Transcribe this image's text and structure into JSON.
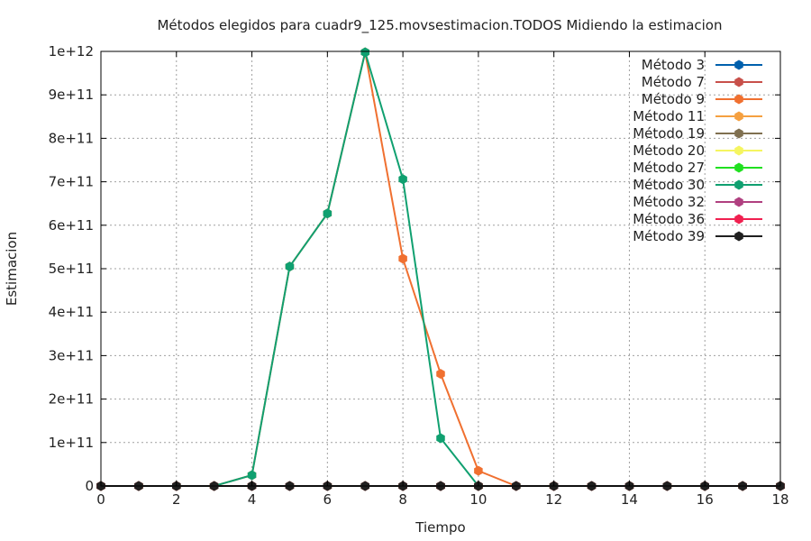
{
  "chart_data": {
    "type": "line",
    "title": "Métodos elegidos para cuadr9_125.movsestimacion.TODOS Midiendo la estimacion",
    "xlabel": "Tiempo",
    "ylabel": "Estimacion",
    "xlim": [
      0,
      18
    ],
    "ylim": [
      0,
      1000000000000
    ],
    "x_ticks": [
      0,
      2,
      4,
      6,
      8,
      10,
      12,
      14,
      16,
      18
    ],
    "x_tick_labels": [
      "0",
      "2",
      "4",
      "6",
      "8",
      "10",
      "12",
      "14",
      "16",
      "18"
    ],
    "y_ticks": [
      0,
      100000000000,
      200000000000,
      300000000000,
      400000000000,
      500000000000,
      600000000000,
      700000000000,
      800000000000,
      900000000000,
      1000000000000
    ],
    "y_tick_labels": [
      "0",
      "1e+11",
      "2e+11",
      "3e+11",
      "4e+11",
      "5e+11",
      "6e+11",
      "7e+11",
      "8e+11",
      "9e+11",
      "1e+12"
    ],
    "grid": true,
    "legend_position": "top-right",
    "x": [
      0,
      1,
      2,
      3,
      4,
      5,
      6,
      7,
      8,
      9,
      10,
      11,
      12,
      13,
      14,
      15,
      16,
      17,
      18
    ],
    "series": [
      {
        "name": "Método 3",
        "color": "#0060ad",
        "values": [
          0,
          0,
          0,
          0,
          0,
          0,
          0,
          0,
          0,
          0,
          0,
          0,
          0,
          0,
          0,
          0,
          0,
          0,
          0
        ]
      },
      {
        "name": "Método 7",
        "color": "#c8504a",
        "values": [
          0,
          0,
          0,
          0,
          0,
          0,
          0,
          0,
          0,
          0,
          0,
          0,
          0,
          0,
          0,
          0,
          0,
          0,
          0
        ]
      },
      {
        "name": "Método 9",
        "color": "#f07030",
        "values": [
          0,
          0,
          0,
          0,
          25000000000,
          505000000000,
          627000000000,
          998000000000,
          523000000000,
          258000000000,
          35000000000,
          0,
          0,
          0,
          0,
          0,
          0,
          0,
          0
        ]
      },
      {
        "name": "Método 11",
        "color": "#f5a040",
        "values": [
          0,
          0,
          0,
          0,
          0,
          0,
          0,
          0,
          0,
          0,
          0,
          0,
          0,
          0,
          0,
          0,
          0,
          0,
          0
        ]
      },
      {
        "name": "Método 19",
        "color": "#807050",
        "values": [
          0,
          0,
          0,
          0,
          0,
          0,
          0,
          0,
          0,
          0,
          0,
          0,
          0,
          0,
          0,
          0,
          0,
          0,
          0
        ]
      },
      {
        "name": "Método 20",
        "color": "#f5f560",
        "values": [
          0,
          0,
          0,
          0,
          0,
          0,
          0,
          0,
          0,
          0,
          0,
          0,
          0,
          0,
          0,
          0,
          0,
          0,
          0
        ]
      },
      {
        "name": "Método 27",
        "color": "#20e020",
        "values": [
          0,
          0,
          0,
          0,
          0,
          0,
          0,
          0,
          0,
          0,
          0,
          0,
          0,
          0,
          0,
          0,
          0,
          0,
          0
        ]
      },
      {
        "name": "Método 30",
        "color": "#10a070",
        "values": [
          0,
          0,
          0,
          0,
          25000000000,
          505000000000,
          627000000000,
          998000000000,
          706000000000,
          110000000000,
          0,
          0,
          0,
          0,
          0,
          0,
          0,
          0,
          0
        ]
      },
      {
        "name": "Método 32",
        "color": "#b04080",
        "values": [
          0,
          0,
          0,
          0,
          0,
          0,
          0,
          0,
          0,
          0,
          0,
          0,
          0,
          0,
          0,
          0,
          0,
          0,
          0
        ]
      },
      {
        "name": "Método 36",
        "color": "#f02050",
        "values": [
          0,
          0,
          0,
          0,
          0,
          0,
          0,
          0,
          0,
          0,
          0,
          0,
          0,
          0,
          0,
          0,
          0,
          0,
          0
        ]
      },
      {
        "name": "Método 39",
        "color": "#202020",
        "values": [
          0,
          0,
          0,
          0,
          0,
          0,
          0,
          0,
          0,
          0,
          0,
          0,
          0,
          0,
          0,
          0,
          0,
          0,
          0
        ]
      }
    ]
  }
}
